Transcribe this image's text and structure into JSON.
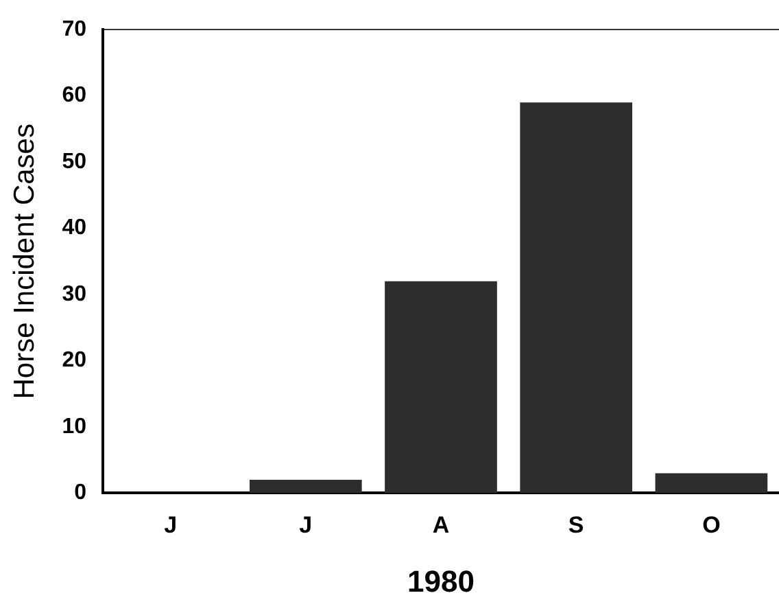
{
  "chart_data": {
    "type": "bar",
    "xlabel": "1980",
    "ylabel": "Horse Incident Cases",
    "categories": [
      "J",
      "J",
      "A",
      "S",
      "O"
    ],
    "values": [
      0,
      2,
      32,
      59,
      3
    ],
    "color": "#2d2d2d",
    "ylim": [
      0,
      70
    ],
    "yticks": [
      0,
      10,
      20,
      30,
      40,
      50,
      60,
      70
    ],
    "grid": false,
    "legend": false
  }
}
